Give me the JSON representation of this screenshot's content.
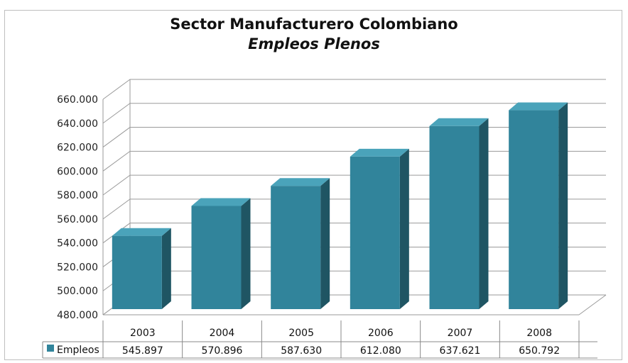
{
  "chart_data": {
    "type": "bar",
    "title": "Sector Manufacturero Colombiano",
    "subtitle": "Empleos Plenos",
    "categories": [
      "2003",
      "2004",
      "2005",
      "2006",
      "2007",
      "2008"
    ],
    "series": [
      {
        "name": "Empleos",
        "values": [
          545897,
          570896,
          587630,
          612080,
          637621,
          650792
        ],
        "color": "#31849b"
      }
    ],
    "value_labels": [
      "545.897",
      "570.896",
      "587.630",
      "612.080",
      "637.621",
      "650.792"
    ],
    "ylim": [
      480000,
      660000
    ],
    "y_ticks": [
      480000,
      500000,
      520000,
      540000,
      560000,
      580000,
      600000,
      620000,
      640000,
      660000
    ],
    "y_tick_labels": [
      "480.000",
      "500.000",
      "520.000",
      "540.000",
      "560.000",
      "580.000",
      "600.000",
      "620.000",
      "640.000",
      "660.000"
    ],
    "grid": true,
    "data_table": true,
    "style": "3d-bar"
  }
}
